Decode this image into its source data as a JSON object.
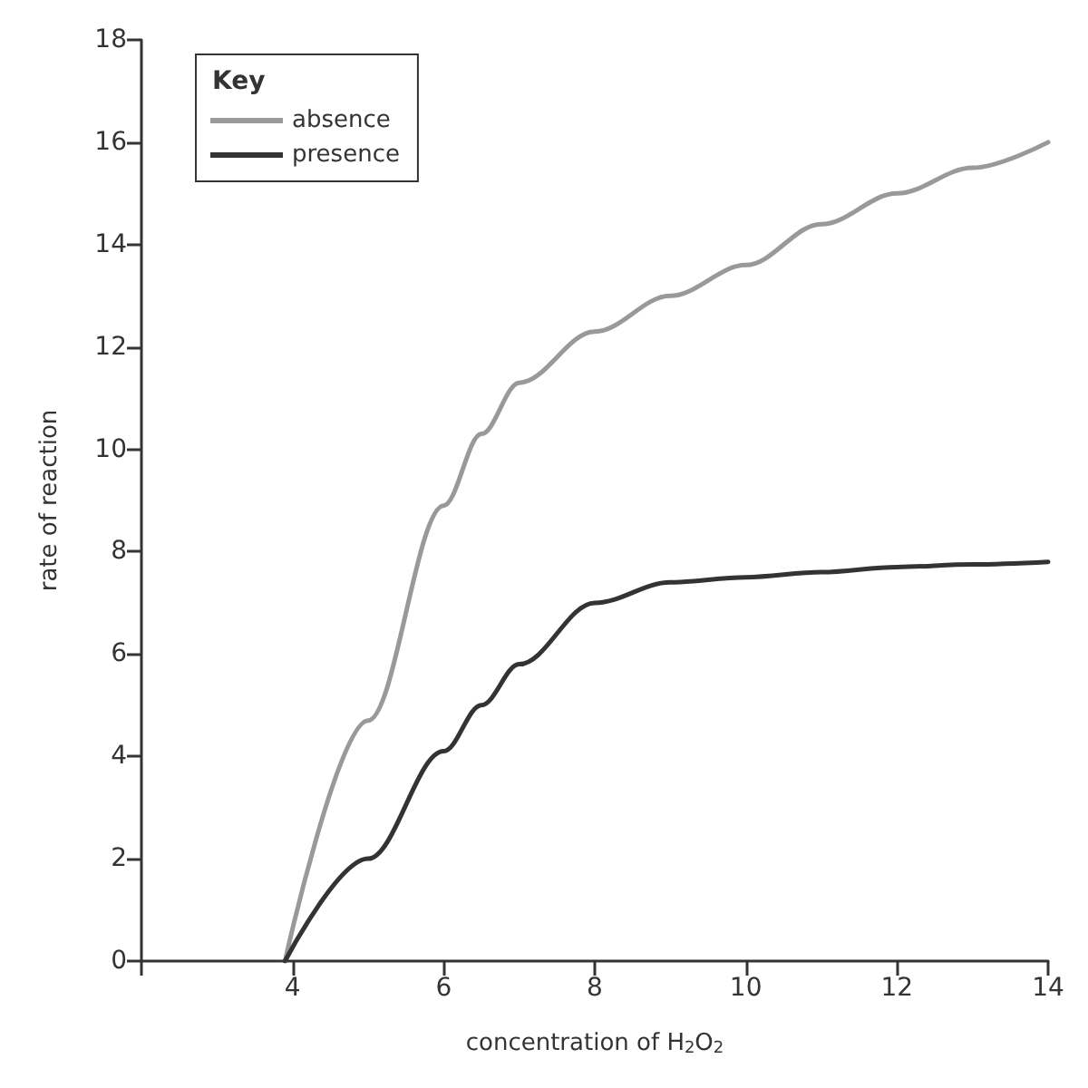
{
  "chart_data": {
    "type": "line",
    "xlabel": "concentration of H$_{2}$O$_{2}$",
    "ylabel": "rate of reaction",
    "legend_title": "Key",
    "legend": "top left",
    "grid": false,
    "marker": "none",
    "line_style": "solid",
    "x": [
      3.9,
      5,
      6,
      6.5,
      7,
      8,
      9,
      10,
      11,
      12,
      13,
      14
    ],
    "series": [
      {
        "name": "absence",
        "color": "#999999",
        "values": [
          0,
          4.7,
          8.9,
          10.3,
          11.3,
          12.3,
          13.0,
          13.6,
          14.4,
          15.0,
          15.5,
          16.0
        ]
      },
      {
        "name": "presence",
        "color": "#333333",
        "values": [
          0,
          2.0,
          4.1,
          5.0,
          5.8,
          7.0,
          7.4,
          7.5,
          7.6,
          7.7,
          7.75,
          7.8
        ]
      }
    ],
    "xlim": [
      2,
      14
    ],
    "xticks": [
      {
        "value": 2,
        "label": null
      },
      4,
      6,
      8,
      10,
      12,
      14
    ],
    "ylim": [
      0,
      18
    ],
    "yticks": [
      0,
      2,
      4,
      6,
      8,
      10,
      12,
      14,
      16,
      18
    ]
  }
}
